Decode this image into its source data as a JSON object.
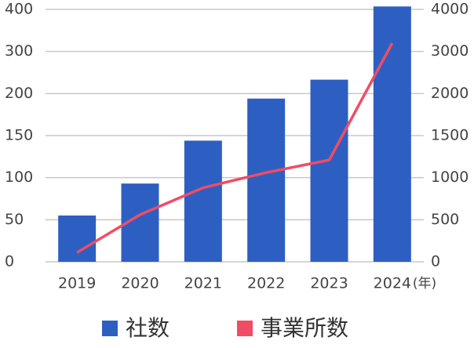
{
  "chart_data": {
    "type": "bar_line",
    "categories": [
      "2019",
      "2020",
      "2021",
      "2022",
      "2023",
      "2024"
    ],
    "x_unit": "(年)",
    "series": [
      {
        "name": "社数",
        "type": "bar",
        "color": "#2d5fc2",
        "values": [
          55,
          93,
          144,
          194,
          233,
          407
        ]
      },
      {
        "name": "事業所数",
        "type": "line",
        "axis": "y2",
        "color": "#f04c64",
        "values": [
          110,
          560,
          880,
          1060,
          1210,
          3200
        ]
      }
    ],
    "ylim": [
      0,
      400
    ],
    "yticks": [
      0,
      50,
      100,
      150,
      200,
      300,
      400
    ],
    "y2lim": [
      0,
      4000
    ],
    "y2ticks": [
      0,
      500,
      1000,
      1500,
      2000,
      3000,
      4000
    ],
    "grid": true,
    "legend": "bottom"
  }
}
